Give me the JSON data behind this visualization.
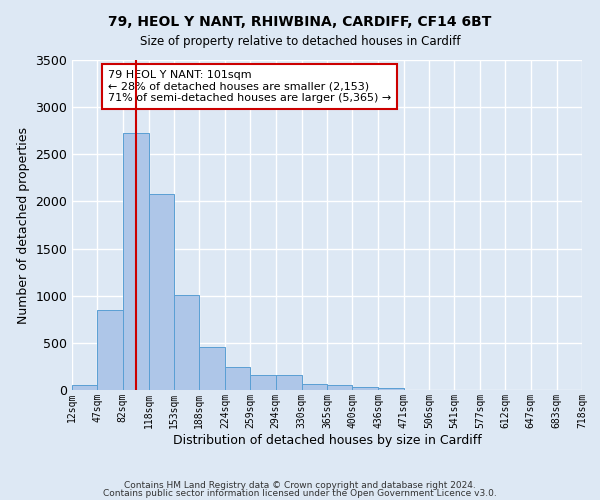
{
  "title": "79, HEOL Y NANT, RHIWBINA, CARDIFF, CF14 6BT",
  "subtitle": "Size of property relative to detached houses in Cardiff",
  "xlabel": "Distribution of detached houses by size in Cardiff",
  "ylabel": "Number of detached properties",
  "bar_color": "#aec6e8",
  "bar_edge_color": "#5a9fd4",
  "background_color": "#dde8f4",
  "grid_color": "#ffffff",
  "vline_x": 101,
  "vline_color": "#cc0000",
  "bin_edges": [
    12,
    47,
    82,
    118,
    153,
    188,
    224,
    259,
    294,
    330,
    365,
    400,
    436,
    471,
    506,
    541,
    577,
    612,
    647,
    683,
    718
  ],
  "bar_heights": [
    55,
    850,
    2730,
    2080,
    1010,
    460,
    245,
    155,
    155,
    65,
    55,
    35,
    20,
    0,
    0,
    0,
    0,
    0,
    0,
    0
  ],
  "xlim": [
    12,
    718
  ],
  "ylim": [
    0,
    3500
  ],
  "yticks": [
    0,
    500,
    1000,
    1500,
    2000,
    2500,
    3000,
    3500
  ],
  "xtick_labels": [
    "12sqm",
    "47sqm",
    "82sqm",
    "118sqm",
    "153sqm",
    "188sqm",
    "224sqm",
    "259sqm",
    "294sqm",
    "330sqm",
    "365sqm",
    "400sqm",
    "436sqm",
    "471sqm",
    "506sqm",
    "541sqm",
    "577sqm",
    "612sqm",
    "647sqm",
    "683sqm",
    "718sqm"
  ],
  "annotation_box_text": "79 HEOL Y NANT: 101sqm\n← 28% of detached houses are smaller (2,153)\n71% of semi-detached houses are larger (5,365) →",
  "annotation_box_color": "#ffffff",
  "annotation_box_edge_color": "#cc0000",
  "footer1": "Contains HM Land Registry data © Crown copyright and database right 2024.",
  "footer2": "Contains public sector information licensed under the Open Government Licence v3.0."
}
